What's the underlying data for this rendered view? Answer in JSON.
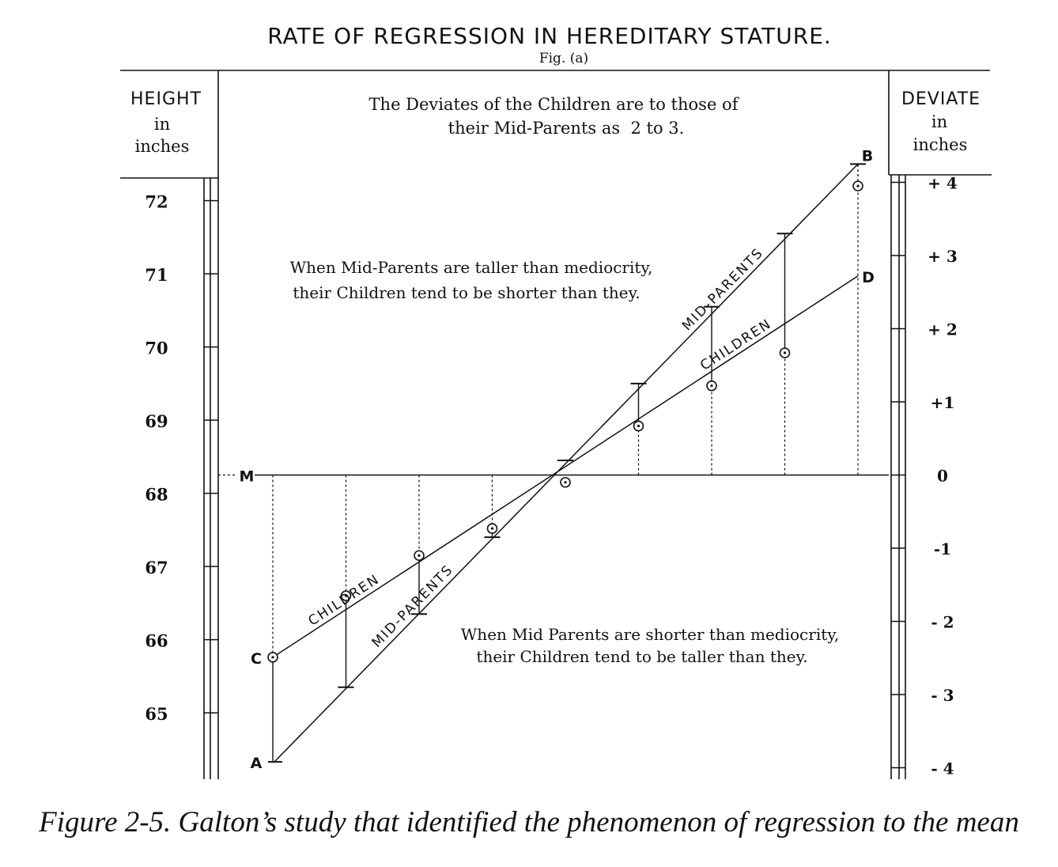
{
  "chart_data": {
    "type": "line",
    "title": "RATE OF REGRESSION IN HEREDITARY STATURE.",
    "subtitle": "Fig. (a)",
    "left_axis": {
      "label_lines": [
        "HEIGHT",
        "in",
        "inches"
      ],
      "ticks": [
        72,
        71,
        70,
        69,
        68,
        67,
        66,
        65
      ],
      "ylim": [
        64.2,
        72.5
      ]
    },
    "right_axis": {
      "label_lines": [
        "DEVIATE",
        "in",
        "inches"
      ],
      "ticks": [
        {
          "value": 4,
          "label": "+ 4"
        },
        {
          "value": 3,
          "label": "+ 3"
        },
        {
          "value": 2,
          "label": "+ 2"
        },
        {
          "value": 1,
          "label": "+1"
        },
        {
          "value": 0,
          "label": "0"
        },
        {
          "value": -1,
          "label": "-1"
        },
        {
          "value": -2,
          "label": "- 2"
        },
        {
          "value": -3,
          "label": "- 3"
        },
        {
          "value": -4,
          "label": "- 4"
        }
      ]
    },
    "mediocrity_height": 68.25,
    "mediocrity_label": "M",
    "mid_parent_deviates": [
      -4.0,
      -3.0,
      -2.0,
      -1.0,
      0.0,
      1.0,
      2.0,
      3.0,
      4.0
    ],
    "series": [
      {
        "name": "Mid-Parents",
        "label": "MID-PARENTS",
        "line_deviates": [
          -3.92,
          4.25
        ],
        "values": [
          -3.92,
          -2.9,
          -1.9,
          -0.85,
          0.2,
          1.25,
          2.3,
          3.3,
          4.25
        ],
        "end_labels": [
          "A",
          "B"
        ]
      },
      {
        "name": "Children",
        "label": "CHILDREN",
        "line_deviates": [
          -2.49,
          2.72
        ],
        "values": [
          -2.49,
          -1.65,
          -1.1,
          -0.73,
          -0.1,
          0.67,
          1.22,
          1.67,
          3.95
        ],
        "end_labels": [
          "C",
          "D"
        ]
      }
    ],
    "annotations": [
      {
        "id": "ratio",
        "lines": [
          "The Deviates of the Children are to those of",
          "their Mid-Parents as  2 to 3."
        ]
      },
      {
        "id": "taller",
        "lines": [
          "When Mid-Parents are taller than mediocrity,",
          "their Children tend to be shorter than they."
        ]
      },
      {
        "id": "shorter",
        "lines": [
          "When Mid Parents are shorter than mediocrity,",
          "their Children tend to be taller than they."
        ]
      }
    ]
  },
  "caption": "Figure 2-5. Galton’s study that identified the phenomenon of regression to the mean"
}
